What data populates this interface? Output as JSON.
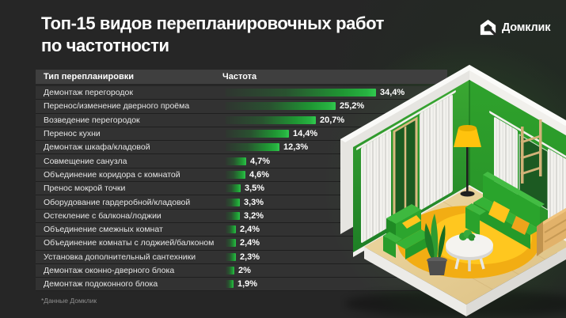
{
  "header": {
    "title_line1": "Топ-15 видов перепланировочных работ",
    "title_line2": "по частотности",
    "logo_text": "Домклик"
  },
  "table": {
    "type_column_header": "Тип перепланировки",
    "frequency_column_header": "Частота"
  },
  "footnote": "*Данные Домклик",
  "colors": {
    "background": "#262626",
    "accent_green": "#21A038",
    "bar_tip_green": "#31CA4F",
    "row_background": "#3E3E3E",
    "pillow_yellow": "#FFC41A",
    "rug_yellow": "#F2AD13"
  },
  "chart_data": {
    "type": "bar",
    "orientation": "horizontal",
    "title": "Топ-15 видов перепланировочных работ по частотности",
    "categories": [
      "Демонтаж перегородок",
      "Перенос/изменение дверного проёма",
      "Возведение перегородок",
      "Перенос кухни",
      "Демонтаж шкафа/кладовой",
      "Совмещение санузла",
      "Объединение коридора с комнатой",
      "Пренос мокрой точки",
      "Оборудование гардеробной/кладовой",
      "Остекление с балкона/лоджии",
      "Объединение смежных комнат",
      "Объединение комнаты с лоджией/балконом",
      "Установка дополнительный сантехники",
      "Демонтаж оконно-дверного блока",
      "Демонтаж подоконного блока"
    ],
    "values": [
      34.4,
      25.2,
      20.7,
      14.4,
      12.3,
      4.7,
      4.6,
      3.5,
      3.3,
      3.2,
      2.4,
      2.4,
      2.3,
      2,
      1.9
    ],
    "value_labels": [
      "34,4%",
      "25,2%",
      "20,7%",
      "14,4%",
      "12,3%",
      "4,7%",
      "4,6%",
      "3,5%",
      "3,3%",
      "3,2%",
      "2,4%",
      "2,4%",
      "2,3%",
      "2%",
      "1,9%"
    ],
    "xlabel": "Частота",
    "ylabel": "Тип перепланировки",
    "xlim": [
      0,
      34.4
    ],
    "grid": false,
    "legend": false,
    "source": "*Данные Домклик"
  }
}
